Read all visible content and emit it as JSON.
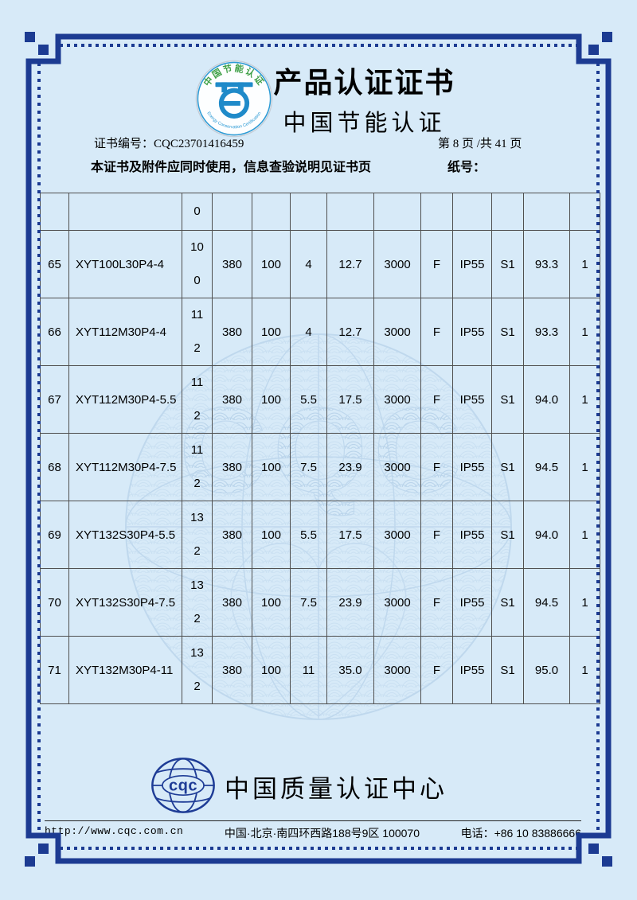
{
  "colors": {
    "page_background": "#d7eaf8",
    "frame_navy": "#1c3b92",
    "table_line": "#4f4f4f",
    "logo_blue": "#1f8ac9",
    "logo_green": "#3fa047",
    "cqc_navy": "#1e3c96",
    "watermark_blue": "#a9c7e4"
  },
  "header": {
    "title": "产品认证证书",
    "subtitle": "中国节能认证",
    "logo": {
      "top_text": "中国节能认证",
      "bottom_text": "Energy Conservation Certification"
    },
    "cert_no_label": "证书编号：",
    "cert_no": "CQC23701416459",
    "page_info": "第 8 页 /共 41 页",
    "notice": "本证书及附件应同时使用，信息查验说明见证书页",
    "paper_no_label": "纸号："
  },
  "table": {
    "rows": [
      {
        "cells": [
          "",
          "",
          "0",
          "",
          "",
          "",
          "",
          "",
          "",
          "",
          "",
          "",
          ""
        ]
      },
      {
        "cells": [
          "65",
          "XYT100L30P4-4",
          "10\n0",
          "380",
          "100",
          "4",
          "12.7",
          "3000",
          "F",
          "IP55",
          "S1",
          "93.3",
          "1"
        ]
      },
      {
        "cells": [
          "66",
          "XYT112M30P4-4",
          "11\n2",
          "380",
          "100",
          "4",
          "12.7",
          "3000",
          "F",
          "IP55",
          "S1",
          "93.3",
          "1"
        ]
      },
      {
        "cells": [
          "67",
          "XYT112M30P4-5.5",
          "11\n2",
          "380",
          "100",
          "5.5",
          "17.5",
          "3000",
          "F",
          "IP55",
          "S1",
          "94.0",
          "1"
        ]
      },
      {
        "cells": [
          "68",
          "XYT112M30P4-7.5",
          "11\n2",
          "380",
          "100",
          "7.5",
          "23.9",
          "3000",
          "F",
          "IP55",
          "S1",
          "94.5",
          "1"
        ]
      },
      {
        "cells": [
          "69",
          "XYT132S30P4-5.5",
          "13\n2",
          "380",
          "100",
          "5.5",
          "17.5",
          "3000",
          "F",
          "IP55",
          "S1",
          "94.0",
          "1"
        ]
      },
      {
        "cells": [
          "70",
          "XYT132S30P4-7.5",
          "13\n2",
          "380",
          "100",
          "7.5",
          "23.9",
          "3000",
          "F",
          "IP55",
          "S1",
          "94.5",
          "1"
        ]
      },
      {
        "cells": [
          "71",
          "XYT132M30P4-11",
          "13\n2",
          "380",
          "100",
          "11",
          "35.0",
          "3000",
          "F",
          "IP55",
          "S1",
          "95.0",
          "1"
        ]
      }
    ]
  },
  "watermark_text": "CQC",
  "footer": {
    "logo_text": "cqc",
    "org_name": "中国质量认证中心",
    "url": "http://www.cqc.com.cn",
    "address": "中国·北京·南四环西路188号9区  100070",
    "phone": "电话：+86 10 83886666"
  }
}
